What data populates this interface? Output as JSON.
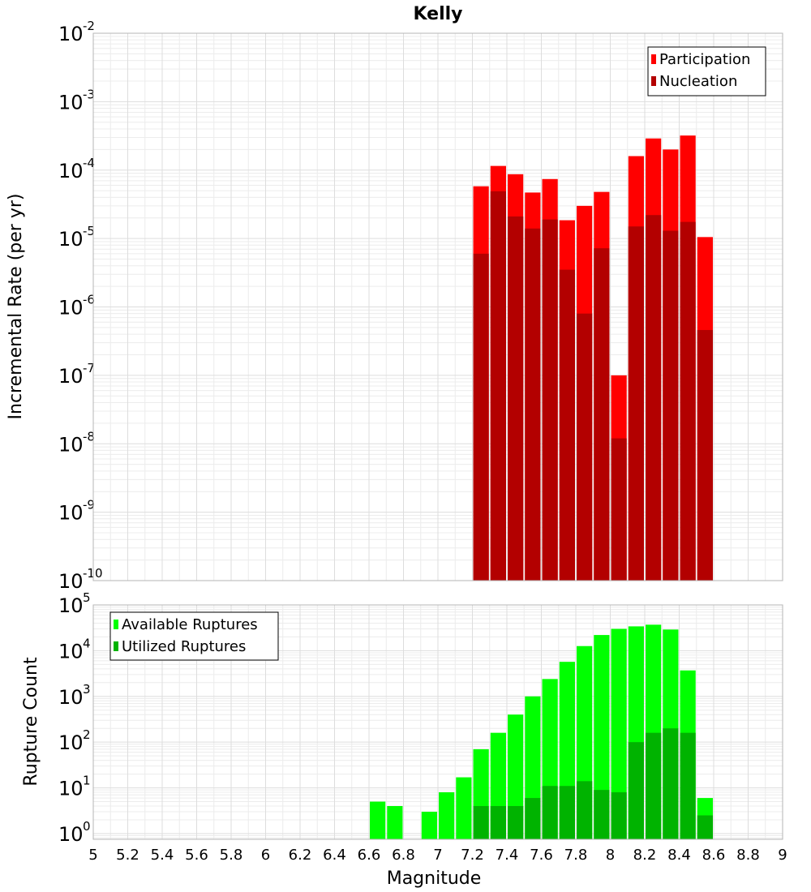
{
  "chart_data": [
    {
      "type": "bar",
      "title": "Kelly",
      "xlabel": "Magnitude",
      "ylabel": "Incremental Rate (per yr)",
      "yscale": "log",
      "ylim": [
        1e-10,
        0.01
      ],
      "xlim": [
        5,
        9
      ],
      "ytick_base": "10",
      "yticks_exp": [
        "-10",
        "-9",
        "-8",
        "-7",
        "-6",
        "-5",
        "-4",
        "-3",
        "-2"
      ],
      "legend_position": "top-right",
      "x": [
        7.25,
        7.35,
        7.45,
        7.55,
        7.65,
        7.75,
        7.85,
        7.95,
        8.05,
        8.15,
        8.25,
        8.35,
        8.45,
        8.55
      ],
      "series": [
        {
          "name": "Participation",
          "color": "#ff0000",
          "values": [
            5.8e-05,
            0.000115,
            8.7e-05,
            4.7e-05,
            7.4e-05,
            1.85e-05,
            3e-05,
            4.8e-05,
            1e-07,
            0.00016,
            0.00029,
            0.0002,
            0.00032,
            1.05e-05
          ]
        },
        {
          "name": "Nucleation",
          "color": "#b30000",
          "values": [
            6e-06,
            4.9e-05,
            2.1e-05,
            1.4e-05,
            1.9e-05,
            3.5e-06,
            8e-07,
            7.2e-06,
            1.2e-08,
            1.5e-05,
            2.2e-05,
            1.3e-05,
            1.75e-05,
            4.6e-07
          ]
        }
      ]
    },
    {
      "type": "bar",
      "xlabel": "Magnitude",
      "ylabel": "Rupture Count",
      "yscale": "log",
      "ylim": [
        0.75,
        100000.0
      ],
      "xlim": [
        5,
        9
      ],
      "ytick_base": "10",
      "yticks_exp": [
        "0",
        "1",
        "2",
        "3",
        "4",
        "5"
      ],
      "xticks": [
        "5",
        "5.2",
        "5.4",
        "5.6",
        "5.8",
        "6",
        "6.2",
        "6.4",
        "6.6",
        "6.8",
        "7",
        "7.2",
        "7.4",
        "7.6",
        "7.8",
        "8",
        "8.2",
        "8.4",
        "8.6",
        "8.8",
        "9"
      ],
      "legend_position": "top-left",
      "x": [
        6.65,
        6.75,
        6.95,
        7.05,
        7.15,
        7.25,
        7.35,
        7.45,
        7.55,
        7.65,
        7.75,
        7.85,
        7.95,
        8.05,
        8.15,
        8.25,
        8.35,
        8.45,
        8.55
      ],
      "series": [
        {
          "name": "Available Ruptures",
          "color": "#00ff00",
          "values": [
            5,
            4,
            3,
            8,
            17,
            70,
            160,
            400,
            1000,
            2400,
            5700,
            12600,
            22000,
            30000,
            34000,
            37000,
            29000,
            3700,
            6
          ]
        },
        {
          "name": "Utilized Ruptures",
          "color": "#00b300",
          "values": [
            null,
            null,
            null,
            null,
            null,
            4,
            4,
            4,
            6,
            11,
            11,
            14,
            9,
            8,
            100,
            160,
            200,
            160,
            2.5
          ]
        }
      ]
    }
  ]
}
